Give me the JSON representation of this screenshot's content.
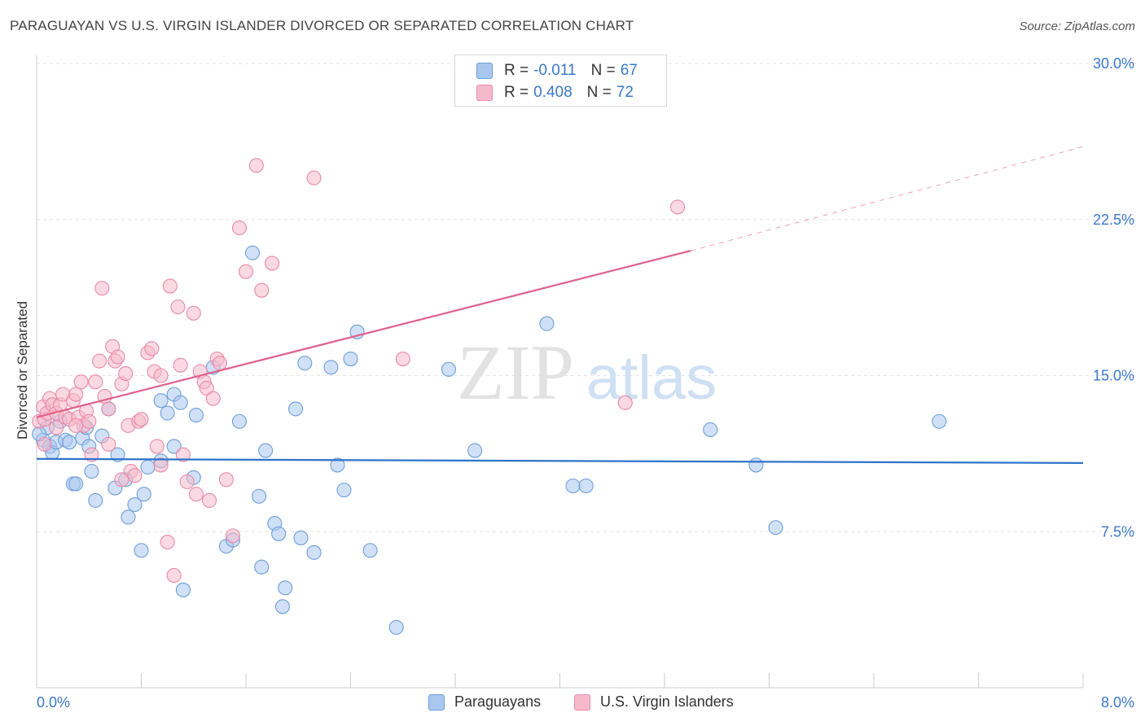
{
  "header": {
    "title": "PARAGUAYAN VS U.S. VIRGIN ISLANDER DIVORCED OR SEPARATED CORRELATION CHART",
    "source": "Source: ZipAtlas.com"
  },
  "watermark": {
    "zip": "ZIP",
    "atlas": "atlas"
  },
  "legend": {
    "rows": [
      {
        "r_label": "R =",
        "r_value": "-0.011",
        "n_label": "N =",
        "n_value": "67"
      },
      {
        "r_label": "R =",
        "r_value": "0.408",
        "n_label": "N =",
        "n_value": "72"
      }
    ]
  },
  "colors": {
    "blue_fill": "#a9c7ee",
    "blue_stroke": "#6f9fd8",
    "blue_line": "#2f73c9",
    "pink_fill": "#f5b9cb",
    "pink_stroke": "#e98aa8",
    "pink_line": "#e0608a",
    "tick_text": "#3a78c9",
    "grid": "#e3e3e3"
  },
  "chart_data": {
    "type": "scatter",
    "title": "PARAGUAYAN VS U.S. VIRGIN ISLANDER DIVORCED OR SEPARATED CORRELATION CHART",
    "xlabel": "",
    "ylabel": "Divorced or Separated",
    "xlim": [
      0,
      8.0
    ],
    "ylim": [
      0,
      30.0
    ],
    "x_ticks": [
      "0.0%",
      "8.0%"
    ],
    "y_ticks": [
      "7.5%",
      "15.0%",
      "22.5%",
      "30.0%"
    ],
    "y_tick_values": [
      7.5,
      15.0,
      22.5,
      30.0
    ],
    "grid": "horizontal dashed",
    "legend_position": "top-center",
    "series": [
      {
        "name": "Paraguayans",
        "trend": {
          "x": [
            0,
            8.0
          ],
          "y": [
            11.0,
            10.8
          ],
          "extrapolated": false
        },
        "points": [
          [
            0.05,
            11.9
          ],
          [
            0.08,
            12.5
          ],
          [
            0.1,
            11.6
          ],
          [
            0.12,
            11.3
          ],
          [
            0.15,
            11.8
          ],
          [
            0.18,
            12.8
          ],
          [
            0.22,
            11.9
          ],
          [
            0.28,
            9.8
          ],
          [
            0.3,
            9.8
          ],
          [
            0.35,
            12.0
          ],
          [
            0.38,
            12.5
          ],
          [
            0.4,
            11.6
          ],
          [
            0.42,
            10.4
          ],
          [
            0.45,
            9.0
          ],
          [
            0.5,
            12.1
          ],
          [
            0.55,
            13.4
          ],
          [
            0.6,
            9.6
          ],
          [
            0.62,
            11.2
          ],
          [
            0.68,
            10.0
          ],
          [
            0.7,
            8.2
          ],
          [
            0.75,
            8.8
          ],
          [
            0.8,
            6.6
          ],
          [
            0.82,
            9.3
          ],
          [
            0.85,
            10.6
          ],
          [
            0.95,
            13.8
          ],
          [
            0.95,
            10.9
          ],
          [
            1.0,
            13.2
          ],
          [
            1.05,
            14.1
          ],
          [
            1.05,
            11.6
          ],
          [
            1.1,
            13.7
          ],
          [
            1.12,
            4.7
          ],
          [
            1.2,
            10.1
          ],
          [
            1.22,
            13.1
          ],
          [
            1.35,
            15.4
          ],
          [
            1.45,
            6.8
          ],
          [
            1.5,
            7.1
          ],
          [
            1.55,
            12.8
          ],
          [
            1.65,
            20.9
          ],
          [
            1.7,
            9.2
          ],
          [
            1.72,
            5.8
          ],
          [
            1.75,
            11.4
          ],
          [
            1.82,
            7.9
          ],
          [
            1.85,
            7.4
          ],
          [
            1.88,
            3.9
          ],
          [
            1.9,
            4.8
          ],
          [
            1.98,
            13.4
          ],
          [
            2.02,
            7.2
          ],
          [
            2.05,
            15.6
          ],
          [
            2.12,
            6.5
          ],
          [
            2.25,
            15.4
          ],
          [
            2.3,
            10.7
          ],
          [
            2.35,
            9.5
          ],
          [
            2.4,
            15.8
          ],
          [
            2.45,
            17.1
          ],
          [
            2.55,
            6.6
          ],
          [
            2.75,
            2.9
          ],
          [
            3.15,
            15.3
          ],
          [
            3.35,
            11.4
          ],
          [
            3.9,
            17.5
          ],
          [
            4.1,
            9.7
          ],
          [
            4.2,
            9.7
          ],
          [
            5.15,
            12.4
          ],
          [
            5.5,
            10.7
          ],
          [
            5.65,
            7.7
          ],
          [
            6.9,
            12.8
          ],
          [
            0.02,
            12.2
          ],
          [
            0.25,
            11.8
          ]
        ]
      },
      {
        "name": "U.S. Virgin Islanders",
        "trend": {
          "x": [
            0,
            5.0
          ],
          "y": [
            13.0,
            21.0
          ],
          "extrapolated_to": [
            8.0,
            26.0
          ]
        },
        "points": [
          [
            0.02,
            12.8
          ],
          [
            0.05,
            13.5
          ],
          [
            0.06,
            12.9
          ],
          [
            0.08,
            13.2
          ],
          [
            0.1,
            13.9
          ],
          [
            0.12,
            13.6
          ],
          [
            0.15,
            13.2
          ],
          [
            0.18,
            13.6
          ],
          [
            0.2,
            14.1
          ],
          [
            0.22,
            13.0
          ],
          [
            0.25,
            12.9
          ],
          [
            0.28,
            13.8
          ],
          [
            0.3,
            14.1
          ],
          [
            0.32,
            13.0
          ],
          [
            0.34,
            14.7
          ],
          [
            0.36,
            12.6
          ],
          [
            0.38,
            13.3
          ],
          [
            0.4,
            12.8
          ],
          [
            0.42,
            11.2
          ],
          [
            0.45,
            14.7
          ],
          [
            0.48,
            15.7
          ],
          [
            0.5,
            19.2
          ],
          [
            0.52,
            14.0
          ],
          [
            0.55,
            11.7
          ],
          [
            0.58,
            16.4
          ],
          [
            0.6,
            15.7
          ],
          [
            0.62,
            15.9
          ],
          [
            0.65,
            14.6
          ],
          [
            0.68,
            15.1
          ],
          [
            0.7,
            12.6
          ],
          [
            0.72,
            10.4
          ],
          [
            0.75,
            10.2
          ],
          [
            0.78,
            12.8
          ],
          [
            0.8,
            12.9
          ],
          [
            0.85,
            16.1
          ],
          [
            0.88,
            16.3
          ],
          [
            0.9,
            15.2
          ],
          [
            0.92,
            11.6
          ],
          [
            0.95,
            15.0
          ],
          [
            1.0,
            7.0
          ],
          [
            1.02,
            19.3
          ],
          [
            1.05,
            5.4
          ],
          [
            1.08,
            18.3
          ],
          [
            1.1,
            15.5
          ],
          [
            1.12,
            11.2
          ],
          [
            1.15,
            9.9
          ],
          [
            1.2,
            18.0
          ],
          [
            1.22,
            9.3
          ],
          [
            1.25,
            15.2
          ],
          [
            1.28,
            14.7
          ],
          [
            1.3,
            14.4
          ],
          [
            1.32,
            9.0
          ],
          [
            1.35,
            13.9
          ],
          [
            1.38,
            15.8
          ],
          [
            1.4,
            15.6
          ],
          [
            1.45,
            10.0
          ],
          [
            1.5,
            7.3
          ],
          [
            1.55,
            22.1
          ],
          [
            1.6,
            20.0
          ],
          [
            1.68,
            25.1
          ],
          [
            1.72,
            19.1
          ],
          [
            1.8,
            20.4
          ],
          [
            2.12,
            24.5
          ],
          [
            2.8,
            15.8
          ],
          [
            4.5,
            13.7
          ],
          [
            4.9,
            23.1
          ],
          [
            0.3,
            12.6
          ],
          [
            0.06,
            11.7
          ],
          [
            0.15,
            12.5
          ],
          [
            0.55,
            13.4
          ],
          [
            0.65,
            10.0
          ],
          [
            0.95,
            10.7
          ]
        ]
      }
    ]
  },
  "bottom_legend": [
    {
      "label": "Paraguayans"
    },
    {
      "label": "U.S. Virgin Islanders"
    }
  ]
}
